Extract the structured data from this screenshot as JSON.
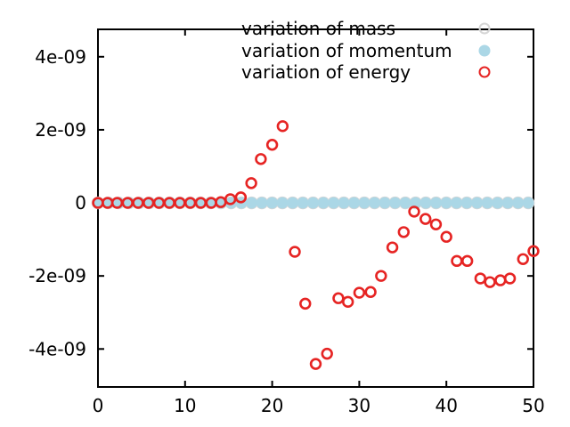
{
  "figure": {
    "background": "#ffffff",
    "border_color": "#000000",
    "text_color": "#000000"
  },
  "chart_data": {
    "type": "scatter",
    "title": "",
    "xlabel": "",
    "ylabel": "",
    "grid": false,
    "legend_position": "top-right-inside",
    "xlim": [
      0,
      50
    ],
    "ylim": [
      -5.04e-09,
      4.75e-09
    ],
    "xticks": {
      "values": [
        0,
        10,
        20,
        30,
        40,
        50
      ],
      "labels": [
        "0",
        "10",
        "20",
        "30",
        "40",
        "50"
      ]
    },
    "yticks": {
      "values": [
        -4e-09,
        -2e-09,
        0,
        2e-09,
        4e-09
      ],
      "labels": [
        "-4e-09",
        "-2e-09",
        "0",
        "2e-09",
        "4e-09"
      ]
    },
    "tick_style": "inward-mirrored",
    "series": [
      {
        "name": "variation of mass",
        "marker": "open-circle",
        "color": "#d6d6d6",
        "x_min": 0,
        "x_max": 49.4,
        "count": 43,
        "y_constant": 0
      },
      {
        "name": "variation of momentum",
        "marker": "filled-circle",
        "color": "#abd7e6",
        "x_min": 0,
        "x_max": 49.4,
        "count": 43,
        "y_constant": 0
      },
      {
        "name": "variation of energy",
        "marker": "open-circle",
        "color": "#e62423",
        "points": [
          [
            0,
            0
          ],
          [
            1.1,
            0
          ],
          [
            2.2,
            0
          ],
          [
            3.4,
            0
          ],
          [
            4.6,
            0
          ],
          [
            5.8,
            0
          ],
          [
            7,
            0
          ],
          [
            8.2,
            0
          ],
          [
            9.4,
            0
          ],
          [
            10.6,
            0
          ],
          [
            11.8,
            0
          ],
          [
            13,
            0
          ],
          [
            14.1,
            2e-11
          ],
          [
            15.2,
            1e-10
          ],
          [
            16.4,
            1.5e-10
          ],
          [
            17.6,
            5.4e-10
          ],
          [
            18.7,
            1.2e-09
          ],
          [
            20,
            1.59e-09
          ],
          [
            21.2,
            2.1e-09
          ],
          [
            22.6,
            -1.34e-09
          ],
          [
            23.8,
            -2.76e-09
          ],
          [
            25,
            -4.41e-09
          ],
          [
            26.3,
            -4.13e-09
          ],
          [
            27.6,
            -2.61e-09
          ],
          [
            28.7,
            -2.71e-09
          ],
          [
            30,
            -2.46e-09
          ],
          [
            31.3,
            -2.44e-09
          ],
          [
            32.5,
            -2e-09
          ],
          [
            33.8,
            -1.22e-09
          ],
          [
            35.1,
            -8e-10
          ],
          [
            36.3,
            -2.4e-10
          ],
          [
            37.6,
            -4.4e-10
          ],
          [
            38.8,
            -5.9e-10
          ],
          [
            40,
            -9.3e-10
          ],
          [
            41.2,
            -1.59e-09
          ],
          [
            42.4,
            -1.59e-09
          ],
          [
            43.9,
            -2.07e-09
          ],
          [
            45,
            -2.17e-09
          ],
          [
            46.2,
            -2.12e-09
          ],
          [
            47.3,
            -2.07e-09
          ],
          [
            48.8,
            -1.54e-09
          ],
          [
            50,
            -1.32e-09
          ]
        ]
      }
    ]
  }
}
